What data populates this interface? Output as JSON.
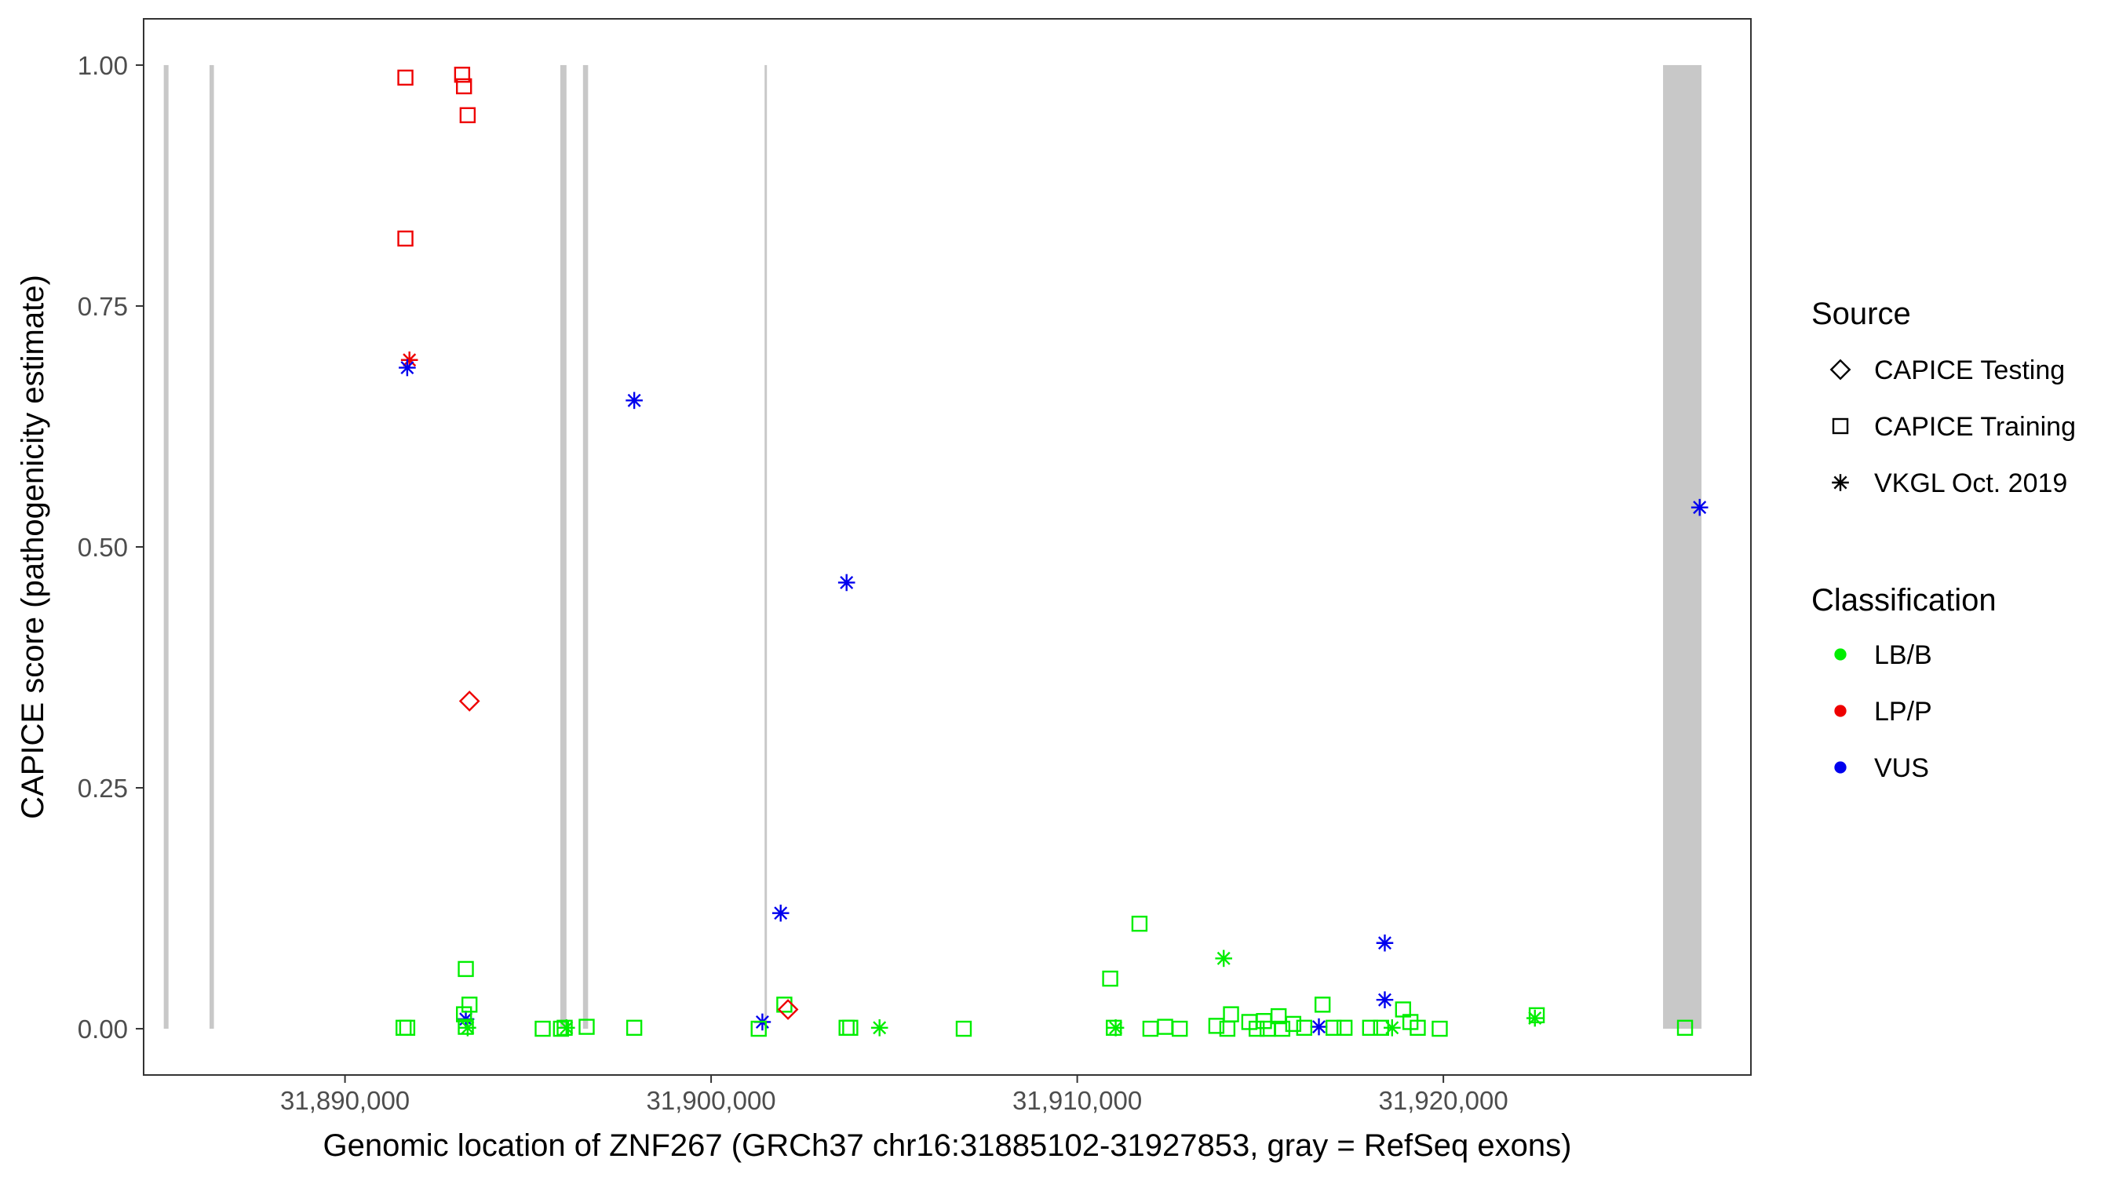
{
  "chart_data": {
    "type": "scatter",
    "title": "",
    "xlabel": "Genomic location of ZNF267 (GRCh37 chr16:31885102-31927853, gray = RefSeq exons)",
    "ylabel": "CAPICE score (pathogenicity estimate)",
    "xlim": [
      31884500,
      31928400
    ],
    "ylim": [
      -0.048,
      1.048
    ],
    "x_ticks": [
      31890000,
      31900000,
      31910000,
      31920000
    ],
    "x_tick_labels": [
      "31,890,000",
      "31,900,000",
      "31,910,000",
      "31,920,000"
    ],
    "y_ticks": [
      0,
      0.25,
      0.5,
      0.75,
      1.0
    ],
    "y_tick_labels": [
      "0.00",
      "0.25",
      "0.50",
      "0.75",
      "1.00"
    ],
    "grid": false,
    "exons": [
      [
        31885050,
        31885180
      ],
      [
        31886300,
        31886420
      ],
      [
        31895880,
        31896050
      ],
      [
        31896500,
        31896640
      ],
      [
        31901460,
        31901500
      ],
      [
        31926000,
        31927050
      ]
    ],
    "legend": {
      "placement": "right",
      "source_title": "Source",
      "source_items": [
        {
          "shape": "diamond",
          "label": "CAPICE Testing"
        },
        {
          "shape": "square",
          "label": "CAPICE Training"
        },
        {
          "shape": "asterisk",
          "label": "VKGL Oct. 2019"
        }
      ],
      "class_title": "Classification",
      "class_items": [
        {
          "key": "LB/B",
          "label": "LB/B",
          "color": "#00ee00"
        },
        {
          "key": "LP/P",
          "label": "LP/P",
          "color": "#ee0000"
        },
        {
          "key": "VUS",
          "label": "VUS",
          "color": "#0000ee"
        }
      ]
    },
    "points": [
      {
        "x": 31891650,
        "y": 0.987,
        "shape": "square",
        "cls": "LP/P"
      },
      {
        "x": 31893200,
        "y": 0.99,
        "shape": "square",
        "cls": "LP/P"
      },
      {
        "x": 31893250,
        "y": 0.978,
        "shape": "square",
        "cls": "LP/P"
      },
      {
        "x": 31893350,
        "y": 0.948,
        "shape": "square",
        "cls": "LP/P"
      },
      {
        "x": 31891650,
        "y": 0.82,
        "shape": "square",
        "cls": "LP/P"
      },
      {
        "x": 31891760,
        "y": 0.694,
        "shape": "asterisk",
        "cls": "LP/P"
      },
      {
        "x": 31891700,
        "y": 0.686,
        "shape": "asterisk",
        "cls": "VUS"
      },
      {
        "x": 31893400,
        "y": 0.34,
        "shape": "diamond",
        "cls": "LP/P"
      },
      {
        "x": 31897900,
        "y": 0.652,
        "shape": "asterisk",
        "cls": "VUS"
      },
      {
        "x": 31903700,
        "y": 0.463,
        "shape": "asterisk",
        "cls": "VUS"
      },
      {
        "x": 31901900,
        "y": 0.12,
        "shape": "asterisk",
        "cls": "VUS"
      },
      {
        "x": 31901400,
        "y": 0.007,
        "shape": "asterisk",
        "cls": "VUS"
      },
      {
        "x": 31902000,
        "y": 0.025,
        "shape": "square",
        "cls": "LB/B"
      },
      {
        "x": 31902100,
        "y": 0.02,
        "shape": "diamond",
        "cls": "LP/P"
      },
      {
        "x": 31927000,
        "y": 0.541,
        "shape": "asterisk",
        "cls": "VUS"
      },
      {
        "x": 31918400,
        "y": 0.089,
        "shape": "asterisk",
        "cls": "VUS"
      },
      {
        "x": 31918400,
        "y": 0.03,
        "shape": "asterisk",
        "cls": "VUS"
      },
      {
        "x": 31916600,
        "y": 0.002,
        "shape": "asterisk",
        "cls": "VUS"
      },
      {
        "x": 31893300,
        "y": 0.01,
        "shape": "asterisk",
        "cls": "VUS"
      },
      {
        "x": 31893300,
        "y": 0.062,
        "shape": "square",
        "cls": "LB/B"
      },
      {
        "x": 31893400,
        "y": 0.025,
        "shape": "square",
        "cls": "LB/B"
      },
      {
        "x": 31893250,
        "y": 0.015,
        "shape": "square",
        "cls": "LB/B"
      },
      {
        "x": 31893300,
        "y": 0.002,
        "shape": "square",
        "cls": "LB/B"
      },
      {
        "x": 31893350,
        "y": 0.001,
        "shape": "asterisk",
        "cls": "LB/B"
      },
      {
        "x": 31891600,
        "y": 0.001,
        "shape": "square",
        "cls": "LB/B"
      },
      {
        "x": 31891700,
        "y": 0.001,
        "shape": "square",
        "cls": "LB/B"
      },
      {
        "x": 31895400,
        "y": 0.0,
        "shape": "square",
        "cls": "LB/B"
      },
      {
        "x": 31895900,
        "y": 0.0,
        "shape": "square",
        "cls": "LB/B"
      },
      {
        "x": 31896000,
        "y": 0.001,
        "shape": "square",
        "cls": "LB/B"
      },
      {
        "x": 31896050,
        "y": 0.001,
        "shape": "asterisk",
        "cls": "LB/B"
      },
      {
        "x": 31896600,
        "y": 0.002,
        "shape": "square",
        "cls": "LB/B"
      },
      {
        "x": 31897900,
        "y": 0.001,
        "shape": "square",
        "cls": "LB/B"
      },
      {
        "x": 31901300,
        "y": 0.0,
        "shape": "square",
        "cls": "LB/B"
      },
      {
        "x": 31903700,
        "y": 0.001,
        "shape": "square",
        "cls": "LB/B"
      },
      {
        "x": 31903800,
        "y": 0.001,
        "shape": "square",
        "cls": "LB/B"
      },
      {
        "x": 31904600,
        "y": 0.001,
        "shape": "asterisk",
        "cls": "LB/B"
      },
      {
        "x": 31906900,
        "y": 0.0,
        "shape": "square",
        "cls": "LB/B"
      },
      {
        "x": 31910900,
        "y": 0.052,
        "shape": "square",
        "cls": "LB/B"
      },
      {
        "x": 31911000,
        "y": 0.001,
        "shape": "square",
        "cls": "LB/B"
      },
      {
        "x": 31911050,
        "y": 0.001,
        "shape": "asterisk",
        "cls": "LB/B"
      },
      {
        "x": 31911700,
        "y": 0.109,
        "shape": "square",
        "cls": "LB/B"
      },
      {
        "x": 31912000,
        "y": 0.0,
        "shape": "square",
        "cls": "LB/B"
      },
      {
        "x": 31912400,
        "y": 0.002,
        "shape": "square",
        "cls": "LB/B"
      },
      {
        "x": 31912800,
        "y": 0.0,
        "shape": "square",
        "cls": "LB/B"
      },
      {
        "x": 31913800,
        "y": 0.003,
        "shape": "square",
        "cls": "LB/B"
      },
      {
        "x": 31914000,
        "y": 0.073,
        "shape": "asterisk",
        "cls": "LB/B"
      },
      {
        "x": 31914100,
        "y": 0.0,
        "shape": "square",
        "cls": "LB/B"
      },
      {
        "x": 31914200,
        "y": 0.015,
        "shape": "square",
        "cls": "LB/B"
      },
      {
        "x": 31914700,
        "y": 0.007,
        "shape": "square",
        "cls": "LB/B"
      },
      {
        "x": 31914900,
        "y": 0.0,
        "shape": "square",
        "cls": "LB/B"
      },
      {
        "x": 31915100,
        "y": 0.008,
        "shape": "square",
        "cls": "LB/B"
      },
      {
        "x": 31915200,
        "y": 0.0,
        "shape": "square",
        "cls": "LB/B"
      },
      {
        "x": 31915500,
        "y": 0.013,
        "shape": "square",
        "cls": "LB/B"
      },
      {
        "x": 31915600,
        "y": 0.0,
        "shape": "square",
        "cls": "LB/B"
      },
      {
        "x": 31915900,
        "y": 0.005,
        "shape": "square",
        "cls": "LB/B"
      },
      {
        "x": 31916200,
        "y": 0.001,
        "shape": "square",
        "cls": "LB/B"
      },
      {
        "x": 31916700,
        "y": 0.025,
        "shape": "square",
        "cls": "LB/B"
      },
      {
        "x": 31917000,
        "y": 0.001,
        "shape": "square",
        "cls": "LB/B"
      },
      {
        "x": 31917300,
        "y": 0.001,
        "shape": "square",
        "cls": "LB/B"
      },
      {
        "x": 31918000,
        "y": 0.001,
        "shape": "square",
        "cls": "LB/B"
      },
      {
        "x": 31918300,
        "y": 0.001,
        "shape": "square",
        "cls": "LB/B"
      },
      {
        "x": 31918600,
        "y": 0.001,
        "shape": "asterisk",
        "cls": "LB/B"
      },
      {
        "x": 31918900,
        "y": 0.02,
        "shape": "square",
        "cls": "LB/B"
      },
      {
        "x": 31919100,
        "y": 0.007,
        "shape": "square",
        "cls": "LB/B"
      },
      {
        "x": 31919300,
        "y": 0.001,
        "shape": "square",
        "cls": "LB/B"
      },
      {
        "x": 31919900,
        "y": 0.0,
        "shape": "square",
        "cls": "LB/B"
      },
      {
        "x": 31922500,
        "y": 0.011,
        "shape": "asterisk",
        "cls": "LB/B"
      },
      {
        "x": 31922550,
        "y": 0.014,
        "shape": "square",
        "cls": "LB/B"
      },
      {
        "x": 31926600,
        "y": 0.001,
        "shape": "square",
        "cls": "LB/B"
      }
    ]
  }
}
